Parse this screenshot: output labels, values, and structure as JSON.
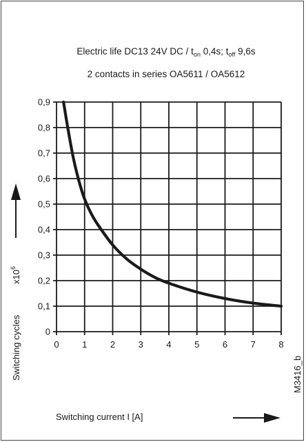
{
  "chart_data": {
    "type": "line",
    "title": {
      "line1_pre": "Electric life DC13 24V DC / t",
      "line1_sub_on": "on",
      "line1_mid": " 0,4s; t",
      "line1_sub_off": "off",
      "line1_post": " 9,6s",
      "line2": "2 contacts in series OA5611 / OA5612"
    },
    "xlabel": "Switching current I  [A]",
    "ylabel": "Switching cycles",
    "y_multiplier": {
      "base": "x10",
      "exponent": "6"
    },
    "figure_code": "M3416_b",
    "xlim": [
      0,
      8
    ],
    "ylim": [
      0,
      0.9
    ],
    "x_ticks": [
      "0",
      "1",
      "2",
      "3",
      "4",
      "5",
      "6",
      "7",
      "8"
    ],
    "y_ticks": [
      "0",
      "0,1",
      "0,2",
      "0,3",
      "0,4",
      "0,5",
      "0,6",
      "0,7",
      "0,8",
      "0,9"
    ],
    "grid": true,
    "series": [
      {
        "color": "#1a1a1a",
        "x": [
          0.25,
          0.4,
          0.6,
          0.8,
          1.0,
          1.25,
          1.5,
          2.0,
          2.5,
          3.0,
          3.5,
          4.0,
          5.0,
          6.0,
          7.0,
          8.0
        ],
        "y": [
          0.9,
          0.8,
          0.68,
          0.59,
          0.52,
          0.46,
          0.415,
          0.34,
          0.285,
          0.245,
          0.213,
          0.19,
          0.155,
          0.13,
          0.112,
          0.1
        ]
      }
    ]
  }
}
